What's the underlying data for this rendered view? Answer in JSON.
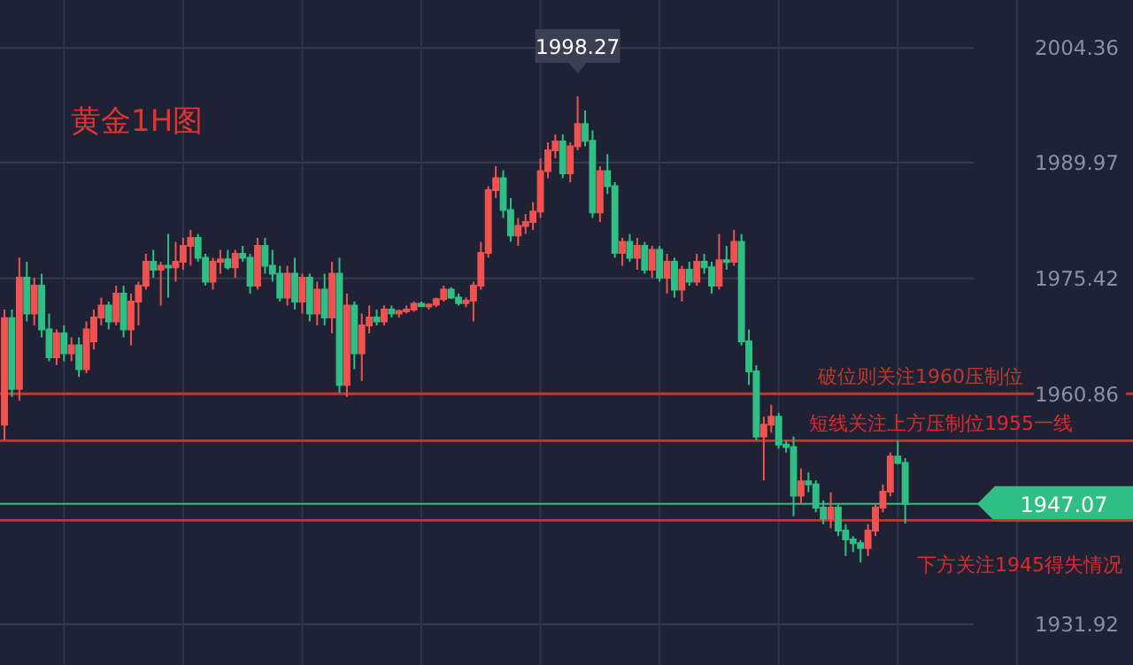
{
  "chart_data": {
    "type": "candlestick",
    "title": "黄金1H图",
    "categories": [
      null,
      null,
      null,
      null,
      null,
      null,
      null,
      null,
      null,
      null,
      null,
      null,
      null,
      null,
      null,
      null,
      null,
      null,
      null,
      null,
      null,
      null,
      null,
      null,
      null,
      null,
      null,
      null,
      null,
      null,
      null,
      null,
      null,
      null,
      null,
      null,
      null,
      null,
      null,
      null,
      null,
      null,
      null,
      null,
      null,
      null,
      null,
      null,
      null,
      null,
      null,
      null,
      null,
      null,
      null,
      null,
      null,
      null,
      null,
      null,
      null,
      null,
      null,
      null,
      null,
      null,
      null,
      null,
      null,
      null,
      null,
      null,
      null,
      null,
      null,
      null,
      null,
      null,
      null,
      null,
      null,
      null,
      null,
      null,
      null,
      null,
      null,
      null,
      null,
      null,
      null,
      null,
      null,
      null,
      null,
      null,
      null,
      null,
      null,
      null,
      null,
      null,
      null,
      null,
      null,
      null,
      null,
      null,
      null,
      null,
      null,
      null,
      null,
      null,
      null,
      null,
      null,
      null,
      null,
      null,
      null,
      null,
      null,
      null,
      null,
      null,
      null,
      null,
      null,
      null,
      null,
      null,
      null,
      null,
      null,
      null,
      null,
      null,
      null,
      null,
      null,
      null,
      null,
      null,
      null,
      null,
      null,
      null,
      null,
      null,
      null,
      null
    ],
    "ohlc": [
      [
        1957,
        1971.5,
        1955,
        1970.4
      ],
      [
        1970.4,
        1971.5,
        1960.5,
        1961.5
      ],
      [
        1961.5,
        1978,
        1960,
        1975.5
      ],
      [
        1975.5,
        1977.5,
        1970,
        1971
      ],
      [
        1971,
        1975.5,
        1969.5,
        1974.5
      ],
      [
        1974.5,
        1976,
        1968,
        1969
      ],
      [
        1969,
        1971,
        1965,
        1965.5
      ],
      [
        1965.5,
        1969,
        1964.5,
        1968.5
      ],
      [
        1968.5,
        1969.5,
        1965,
        1966
      ],
      [
        1966,
        1968,
        1965,
        1967
      ],
      [
        1967,
        1968,
        1963,
        1964
      ],
      [
        1964,
        1970,
        1963.5,
        1969
      ],
      [
        1967.5,
        1971.5,
        1966.5,
        1970.5
      ],
      [
        1970.5,
        1973,
        1969.5,
        1972
      ],
      [
        1972,
        1972.5,
        1969,
        1970
      ],
      [
        1970,
        1974.5,
        1969.5,
        1973.5
      ],
      [
        1973.5,
        1974.5,
        1968,
        1969
      ],
      [
        1969,
        1973.5,
        1967,
        1972.5
      ],
      [
        1972.5,
        1975,
        1969.5,
        1974.5
      ],
      [
        1974.5,
        1978.5,
        1974,
        1977.5
      ],
      [
        1977.5,
        1979,
        1975.5,
        1976.5
      ],
      [
        1976.5,
        1977.5,
        1972,
        1977
      ],
      [
        1977,
        1981,
        1973,
        1976.8
      ],
      [
        1976.8,
        1980,
        1975,
        1977.5
      ],
      [
        1977.5,
        1980.5,
        1976.5,
        1979.5
      ],
      [
        1979.5,
        1981.5,
        1977,
        1980.5
      ],
      [
        1980.5,
        1981,
        1977.5,
        1978
      ],
      [
        1978,
        1978.5,
        1974.5,
        1975
      ],
      [
        1975,
        1978,
        1974,
        1977.5
      ],
      [
        1977.5,
        1979,
        1976,
        1977.8
      ],
      [
        1977.8,
        1979,
        1976.5,
        1976.8
      ],
      [
        1976.8,
        1979,
        1975.5,
        1978.5
      ],
      [
        1978.5,
        1979.5,
        1977.5,
        1978
      ],
      [
        1978,
        1978.5,
        1973.5,
        1974.5
      ],
      [
        1974.5,
        1980.5,
        1974,
        1979.5
      ],
      [
        1979.5,
        1980.5,
        1976,
        1977
      ],
      [
        1977,
        1979,
        1975,
        1976
      ],
      [
        1976,
        1977,
        1972.5,
        1973
      ],
      [
        1973,
        1977,
        1972,
        1976
      ],
      [
        1976,
        1978,
        1971.5,
        1972.5
      ],
      [
        1972.5,
        1976,
        1971,
        1975.5
      ],
      [
        1975.5,
        1976,
        1970,
        1971
      ],
      [
        1971,
        1975,
        1969.5,
        1974
      ],
      [
        1974,
        1976,
        1969.5,
        1970.5
      ],
      [
        1970.5,
        1977.5,
        1968.5,
        1976
      ],
      [
        1976,
        1978,
        1961,
        1962
      ],
      [
        1962,
        1973.5,
        1960.5,
        1972
      ],
      [
        1972,
        1972.5,
        1964,
        1966
      ],
      [
        1966,
        1971,
        1962.5,
        1969.5
      ],
      [
        1969.5,
        1972,
        1968.5,
        1970.5
      ],
      [
        1970.5,
        1971.5,
        1969.5,
        1970
      ],
      [
        1970,
        1972,
        1969.5,
        1971.5
      ],
      [
        1971.5,
        1972,
        1970.5,
        1971
      ],
      [
        1971,
        1971.5,
        1970.5,
        1971.3
      ],
      [
        1971.3,
        1972,
        1971,
        1971.5
      ],
      [
        1971.5,
        1972.5,
        1971.2,
        1972.2
      ],
      [
        1972.2,
        1972.5,
        1971.8,
        1971.9
      ],
      [
        1971.9,
        1972.3,
        1971.5,
        1972.1
      ],
      [
        1972.1,
        1973,
        1971.8,
        1972.8
      ],
      [
        1972.8,
        1974.5,
        1972.5,
        1974
      ],
      [
        1974,
        1974.3,
        1972.8,
        1973
      ],
      [
        1973,
        1973.5,
        1972,
        1972.3
      ],
      [
        1972.3,
        1973,
        1971.8,
        1972.6
      ],
      [
        1972.6,
        1975,
        1970,
        1974.5
      ],
      [
        1974.5,
        1980,
        1974,
        1978.6
      ],
      [
        1978.6,
        1987,
        1978,
        1986.5
      ],
      [
        1986.5,
        1989.5,
        1985.5,
        1988
      ],
      [
        1988,
        1989,
        1983,
        1984
      ],
      [
        1984,
        1985.5,
        1980,
        1980.8
      ],
      [
        1980.8,
        1983,
        1979.5,
        1982
      ],
      [
        1982,
        1983.5,
        1981,
        1982.5
      ],
      [
        1982.5,
        1985,
        1981.5,
        1983.8
      ],
      [
        1983.8,
        1990.5,
        1983,
        1988.9
      ],
      [
        1988.9,
        1992.5,
        1988,
        1991.5
      ],
      [
        1991.5,
        1993.5,
        1990.5,
        1992.6
      ],
      [
        1992.6,
        1993.5,
        1988,
        1988.6
      ],
      [
        1988.6,
        1992.5,
        1987.5,
        1992
      ],
      [
        1992,
        1998.27,
        1991.5,
        1994.8
      ],
      [
        1994.8,
        1996.5,
        1992,
        1992.7
      ],
      [
        1992.7,
        1994,
        1983,
        1983.7
      ],
      [
        1983.7,
        1989.5,
        1982.5,
        1988.9
      ],
      [
        1988.9,
        1991,
        1986,
        1987
      ],
      [
        1987,
        1987.5,
        1978,
        1978.6
      ],
      [
        1978.6,
        1980.5,
        1977,
        1980
      ],
      [
        1980,
        1981,
        1977.5,
        1978
      ],
      [
        1978,
        1980.5,
        1976.5,
        1979.5
      ],
      [
        1979.5,
        1980,
        1976,
        1976.5
      ],
      [
        1976.5,
        1979.5,
        1975.5,
        1979
      ],
      [
        1979,
        1979.5,
        1975,
        1975.5
      ],
      [
        1975.5,
        1978.5,
        1973.5,
        1977.5
      ],
      [
        1977.5,
        1978,
        1973,
        1974
      ],
      [
        1974,
        1977,
        1972.5,
        1976.5
      ],
      [
        1976.5,
        1977.5,
        1974.5,
        1975
      ],
      [
        1975,
        1978.5,
        1974.5,
        1977.5
      ],
      [
        1977.5,
        1978.5,
        1976,
        1976.8
      ],
      [
        1976.8,
        1977.5,
        1973.5,
        1974.5
      ],
      [
        1974.5,
        1981,
        1974,
        1977.7
      ],
      [
        1977.7,
        1979.5,
        1976.5,
        1977.5
      ],
      [
        1977.5,
        1981.5,
        1977,
        1980
      ],
      [
        1980,
        1981,
        1967,
        1967.5
      ],
      [
        1967.5,
        1969,
        1962,
        1963.7
      ],
      [
        1963.7,
        1964.5,
        1955,
        1955.5
      ],
      [
        1955.5,
        1958,
        1950,
        1957
      ],
      [
        1957,
        1959.5,
        1956,
        1958
      ],
      [
        1958,
        1958.5,
        1954,
        1954.5
      ],
      [
        1954.5,
        1955,
        1953.5,
        1954.2
      ],
      [
        1954.2,
        1955.5,
        1945.5,
        1948.1
      ],
      [
        1948.1,
        1951.5,
        1947,
        1949.9
      ],
      [
        1949.9,
        1951,
        1948.5,
        1949.5
      ],
      [
        1949.5,
        1950,
        1946,
        1946.6
      ],
      [
        1946.6,
        1947.5,
        1944.5,
        1945.2
      ],
      [
        1945.2,
        1948.5,
        1944,
        1946.6
      ],
      [
        1946.6,
        1947,
        1943,
        1943.7
      ],
      [
        1943.7,
        1944.5,
        1940.5,
        1942.6
      ],
      [
        1942.6,
        1943,
        1941,
        1942.1
      ],
      [
        1942.1,
        1942.5,
        1939.7,
        1941.5
      ],
      [
        1941.5,
        1944.5,
        1940.5,
        1943.7
      ],
      [
        1943.7,
        1947,
        1943,
        1946.6
      ],
      [
        1946.6,
        1949.5,
        1946,
        1948.6
      ],
      [
        1948.6,
        1953.5,
        1948,
        1953
      ],
      [
        1953,
        1955,
        1952,
        1952.2
      ],
      [
        1952.2,
        1952.8,
        1944.6,
        1947.07
      ],
      null,
      null,
      null,
      null,
      null,
      null,
      null,
      null,
      null,
      null,
      null,
      null,
      null,
      null,
      null,
      null,
      null,
      null,
      null,
      null,
      null,
      null,
      null,
      null,
      null,
      null,
      null,
      null,
      null,
      null
    ],
    "ylim": [
      1926.8,
      2010.4
    ],
    "yticks": [
      1931.92,
      1960.86,
      1975.42,
      1989.97,
      2004.36
    ],
    "grid": true,
    "ref_lines": [
      {
        "axis": "y",
        "value": 1960.9,
        "label": "破位则关注1960压制位",
        "color": "#c0392b"
      },
      {
        "axis": "y",
        "value": 1955,
        "label": "短线关注上方压制位1955一线",
        "color": "#e8262a"
      },
      {
        "axis": "y",
        "value": 1947.07,
        "label": "1947.07",
        "color": "#2fbf85"
      },
      {
        "axis": "y",
        "value": 1945,
        "label": "下方关注1945得失情况",
        "color": "#e8262a"
      }
    ],
    "annotations": [
      "1998.27"
    ]
  }
}
